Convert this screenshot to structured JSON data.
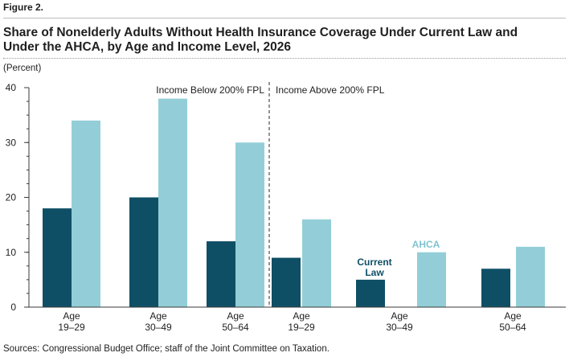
{
  "figure_label": "Figure 2.",
  "title_line1": "Share of Nonelderly Adults Without Health Insurance Coverage Under Current Law and",
  "title_line2": "Under the AHCA, by Age and Income Level, 2026",
  "unit_label": "(Percent)",
  "source": "Sources: Congressional Budget Office; staff of the Joint Committee on Taxation.",
  "colors": {
    "current_law": "#0f4f66",
    "ahca": "#93ced8",
    "ahca_label": "#7ec4d1"
  },
  "chart_data": {
    "type": "bar",
    "ylim": [
      0,
      40
    ],
    "yticks": [
      0,
      10,
      20,
      30,
      40
    ],
    "grid": false,
    "groups": [
      {
        "label": "Income Below 200% FPL",
        "categories": [
          {
            "line1": "Age",
            "line2": "19–29"
          },
          {
            "line1": "Age",
            "line2": "30–49"
          },
          {
            "line1": "Age",
            "line2": "50–64"
          }
        ]
      },
      {
        "label": "Income Above 200% FPL",
        "categories": [
          {
            "line1": "Age",
            "line2": "19–29"
          },
          {
            "line1": "Age",
            "line2": "30–49"
          },
          {
            "line1": "Age",
            "line2": "50–64"
          }
        ]
      }
    ],
    "series": [
      {
        "name": "Current Law",
        "name_line1": "Current",
        "name_line2": "Law",
        "values": [
          18,
          20,
          12,
          9,
          5,
          7
        ]
      },
      {
        "name": "AHCA",
        "values": [
          34,
          38,
          30,
          16,
          10,
          11
        ]
      }
    ]
  }
}
